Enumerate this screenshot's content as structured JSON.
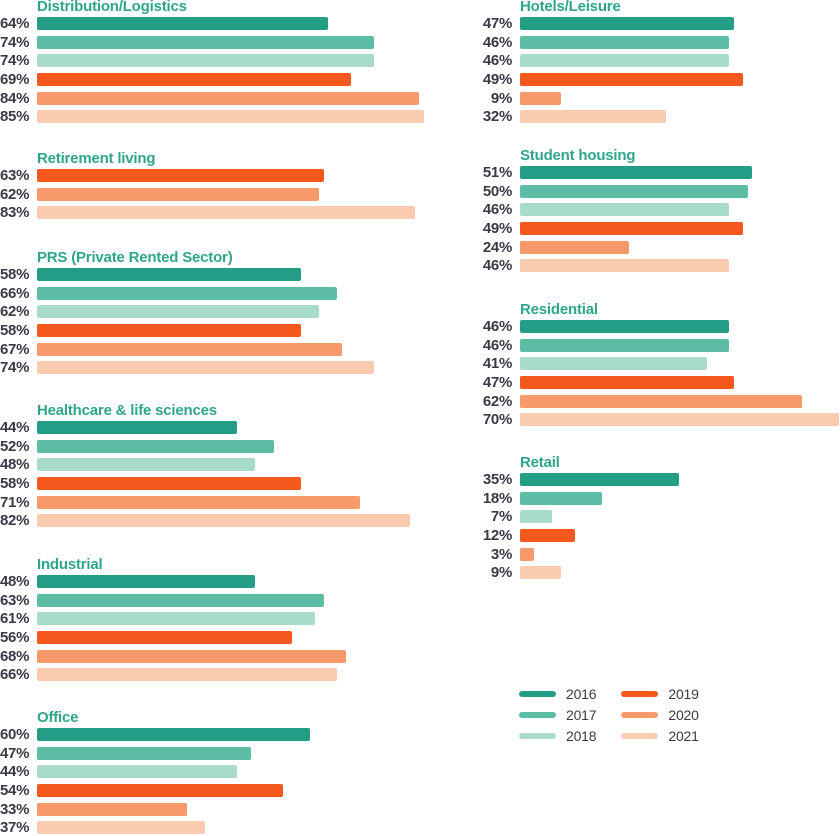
{
  "colors": {
    "title_teal": "#2FA58C",
    "label_text": "#3A3A47",
    "background": "#FFFFFF"
  },
  "chart_data": {
    "type": "bar",
    "orientation": "horizontal",
    "unit": "%",
    "xlim": [
      0,
      100
    ],
    "grid": false,
    "legend_position": "bottom-right",
    "legend": [
      {
        "label": "2016",
        "color": "#249D87"
      },
      {
        "label": "2017",
        "color": "#5CBCA4"
      },
      {
        "label": "2018",
        "color": "#A9DBCC"
      },
      {
        "label": "2019",
        "color": "#F5581D"
      },
      {
        "label": "2020",
        "color": "#F7996A"
      },
      {
        "label": "2021",
        "color": "#FBCBAF"
      }
    ],
    "panels": [
      {
        "title": "Distribution/Logistics",
        "column": "left",
        "years": [
          "2016",
          "2017",
          "2018",
          "2019",
          "2020",
          "2021"
        ],
        "values": [
          64,
          74,
          74,
          69,
          84,
          85
        ]
      },
      {
        "title": "Hotels/Leisure",
        "column": "right",
        "years": [
          "2016",
          "2017",
          "2018",
          "2019",
          "2020",
          "2021"
        ],
        "values": [
          47,
          46,
          46,
          49,
          9,
          32
        ]
      },
      {
        "title": "Retirement living",
        "column": "left",
        "years": [
          "2019",
          "2020",
          "2021"
        ],
        "values": [
          63,
          62,
          83
        ]
      },
      {
        "title": "Student housing",
        "column": "right",
        "years": [
          "2016",
          "2017",
          "2018",
          "2019",
          "2020",
          "2021"
        ],
        "values": [
          51,
          50,
          46,
          49,
          24,
          46
        ]
      },
      {
        "title": "PRS (Private Rented Sector)",
        "column": "left",
        "years": [
          "2016",
          "2017",
          "2018",
          "2019",
          "2020",
          "2021"
        ],
        "values": [
          58,
          66,
          62,
          58,
          67,
          74
        ]
      },
      {
        "title": "Residential",
        "column": "right",
        "years": [
          "2016",
          "2017",
          "2018",
          "2019",
          "2020",
          "2021"
        ],
        "values": [
          46,
          46,
          41,
          47,
          62,
          70
        ]
      },
      {
        "title": "Healthcare & life sciences",
        "column": "left",
        "years": [
          "2016",
          "2017",
          "2018",
          "2019",
          "2020",
          "2021"
        ],
        "values": [
          44,
          52,
          48,
          58,
          71,
          82
        ]
      },
      {
        "title": "Retail",
        "column": "right",
        "years": [
          "2016",
          "2017",
          "2018",
          "2019",
          "2020",
          "2021"
        ],
        "values": [
          35,
          18,
          7,
          12,
          3,
          9
        ]
      },
      {
        "title": "Industrial",
        "column": "left",
        "years": [
          "2016",
          "2017",
          "2018",
          "2019",
          "2020",
          "2021"
        ],
        "values": [
          48,
          63,
          61,
          56,
          68,
          66
        ]
      },
      {
        "title": "Office",
        "column": "left",
        "years": [
          "2016",
          "2017",
          "2018",
          "2019",
          "2020",
          "2021"
        ],
        "values": [
          60,
          47,
          44,
          54,
          33,
          37
        ]
      }
    ]
  }
}
